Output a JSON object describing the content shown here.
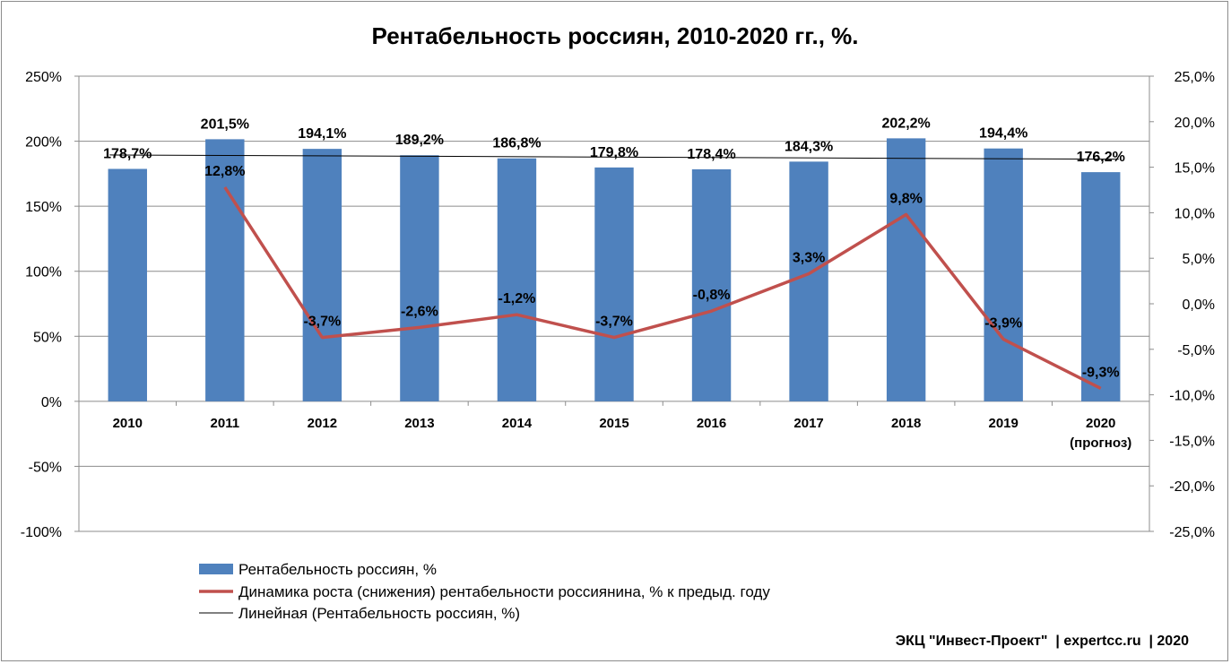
{
  "chart_data": {
    "type": "bar",
    "title": "Рентабельность россиян, 2010-2020 гг., %.",
    "categories": [
      "2010",
      "2011",
      "2012",
      "2013",
      "2014",
      "2015",
      "2016",
      "2017",
      "2018",
      "2019",
      "2020"
    ],
    "category_sublabels": [
      "",
      "",
      "",
      "",
      "",
      "",
      "",
      "",
      "",
      "",
      "(прогноз)"
    ],
    "left_axis": {
      "ylim": [
        -100,
        250
      ],
      "ticks": [
        250,
        200,
        150,
        100,
        50,
        0,
        -50,
        -100
      ],
      "tick_labels": [
        "250%",
        "200%",
        "150%",
        "100%",
        "50%",
        "0%",
        "-50%",
        "-100%"
      ]
    },
    "right_axis": {
      "ylim": [
        -25,
        25
      ],
      "ticks": [
        25,
        20,
        15,
        10,
        5,
        0,
        -5,
        -10,
        -15,
        -20,
        -25
      ],
      "tick_labels": [
        "25,0%",
        "20,0%",
        "15,0%",
        "10,0%",
        "5,0%",
        "0,0%",
        "-5,0%",
        "-10,0%",
        "-15,0%",
        "-20,0%",
        "-25,0%"
      ]
    },
    "series": [
      {
        "name": "Рентабельность россиян, %",
        "type": "bar",
        "axis": "left",
        "color": "#4f81bd",
        "values": [
          178.7,
          201.5,
          194.1,
          189.2,
          186.8,
          179.8,
          178.4,
          184.3,
          202.2,
          194.4,
          176.2
        ],
        "labels": [
          "178,7%",
          "201,5%",
          "194,1%",
          "189,2%",
          "186,8%",
          "179,8%",
          "178,4%",
          "184,3%",
          "202,2%",
          "194,4%",
          "176,2%"
        ]
      },
      {
        "name": "Динамика роста (снижения)  рентабельности россиянина, % к предыд. году",
        "type": "line",
        "axis": "right",
        "color": "#c0504d",
        "values": [
          null,
          12.8,
          -3.7,
          -2.6,
          -1.2,
          -3.7,
          -0.8,
          3.3,
          9.8,
          -3.9,
          -9.3
        ],
        "labels": [
          "",
          "12,8%",
          "-3,7%",
          "-2,6%",
          "-1,2%",
          "-3,7%",
          "-0,8%",
          "3,3%",
          "9,8%",
          "-3,9%",
          "-9,3%"
        ]
      },
      {
        "name": "Линейная (Рентабельность россиян, %)",
        "type": "trendline",
        "axis": "left",
        "color": "#000000"
      }
    ],
    "grid": true,
    "legend_position": "bottom"
  },
  "footer": "ЭКЦ \"Инвест-Проект\"  | expertcc.ru  | 2020"
}
